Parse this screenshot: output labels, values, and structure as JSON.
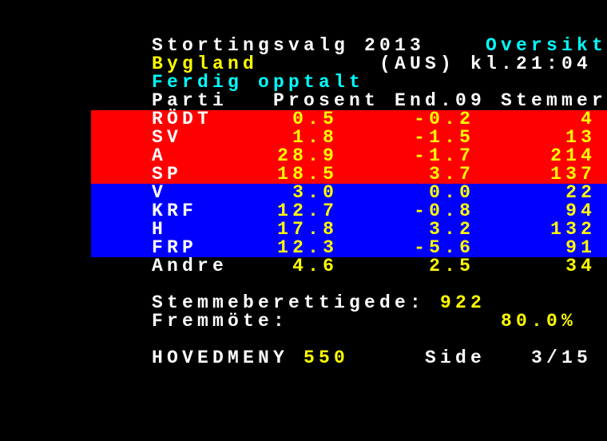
{
  "colors": {
    "red_band": "#ff0000",
    "blue_band": "#0000ff",
    "yellow": "#ffff00",
    "cyan": "#00ffff",
    "white": "#ffffff",
    "background": "#000000"
  },
  "header": {
    "title": "Stortingsvalg 2013",
    "section": "Oversikt",
    "place": "Bygland",
    "region_time": "(AUS) kl.21:04",
    "status": "Ferdig opptalt"
  },
  "table": {
    "columns": [
      "Parti",
      "Prosent",
      "End.09",
      "Stemmer"
    ],
    "rows": [
      {
        "party": "RÖDT",
        "percent": "0.5",
        "change": "-0.2",
        "votes": "4",
        "band": "red"
      },
      {
        "party": "SV",
        "percent": "1.8",
        "change": "-1.5",
        "votes": "13",
        "band": "red"
      },
      {
        "party": "A",
        "percent": "28.9",
        "change": "-1.7",
        "votes": "214",
        "band": "red"
      },
      {
        "party": "SP",
        "percent": "18.5",
        "change": "3.7",
        "votes": "137",
        "band": "red"
      },
      {
        "party": "V",
        "percent": "3.0",
        "change": "0.0",
        "votes": "22",
        "band": "blue"
      },
      {
        "party": "KRF",
        "percent": "12.7",
        "change": "-0.8",
        "votes": "94",
        "band": "blue"
      },
      {
        "party": "H",
        "percent": "17.8",
        "change": "3.2",
        "votes": "132",
        "band": "blue"
      },
      {
        "party": "FRP",
        "percent": "12.3",
        "change": "-5.6",
        "votes": "91",
        "band": "blue"
      },
      {
        "party": "Andre",
        "percent": "4.6",
        "change": "2.5",
        "votes": "34",
        "band": "none"
      }
    ]
  },
  "summary": {
    "eligible_label": "Stemmeberettigede:",
    "eligible_value": "922",
    "turnout_label": "Fremmöte:",
    "turnout_value": "80.0%"
  },
  "footer": {
    "menu_label": "HOVEDMENY",
    "menu_page": "550",
    "side_label": "Side",
    "side_value": "3/15"
  }
}
